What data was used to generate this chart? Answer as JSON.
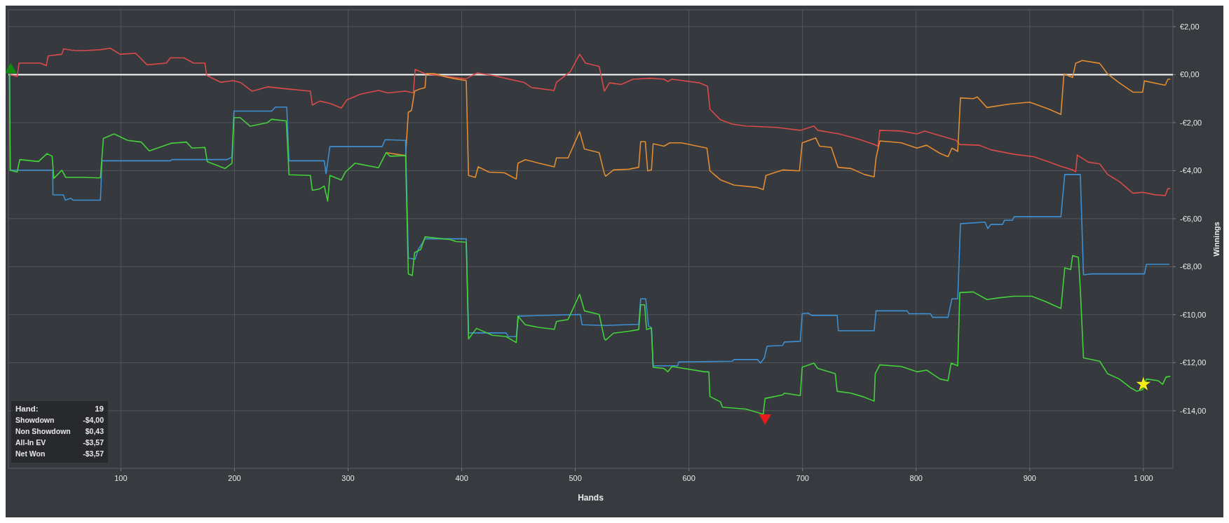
{
  "chart_data": {
    "type": "line",
    "xlabel": "Hands",
    "ylabel": "Winnings",
    "xlim": [
      1,
      1026
    ],
    "ylim": [
      -16.4,
      2.7
    ],
    "xticks": [
      100,
      200,
      300,
      400,
      500,
      600,
      700,
      800,
      900,
      {
        "value": 1000,
        "label": "1 000"
      }
    ],
    "yticks": [
      {
        "value": 2,
        "label": "€2,00"
      },
      {
        "value": 0,
        "label": "€0,00"
      },
      {
        "value": -2,
        "label": "-€2,00"
      },
      {
        "value": -4,
        "label": "-€4,00"
      },
      {
        "value": -6,
        "label": "-€6,00"
      },
      {
        "value": -8,
        "label": "-€8,00"
      },
      {
        "value": -10,
        "label": "-€10,00"
      },
      {
        "value": -12,
        "label": "-€12,00"
      },
      {
        "value": -14,
        "label": "-€14,00"
      }
    ],
    "grid": true,
    "ref_lines": [
      {
        "axis": "y",
        "value": 0,
        "color": "#ffffff"
      }
    ],
    "annotations": [
      "Hand:",
      "19",
      "Showdown",
      "-$4,00",
      "Non Showdown",
      "$0,43",
      "All-In EV",
      "-$3,57",
      "Net Won",
      "-$3,57"
    ],
    "series": [
      {
        "color": "#d94a4a",
        "x": [
          2,
          8.7,
          10.4,
          29.2,
          34.3,
          36,
          48,
          49.6,
          59.8,
          68.4,
          82,
          90.6,
          99.3,
          113,
          123,
          140,
          143.6,
          155.5,
          164,
          174,
          175.5,
          188,
          198.5,
          205,
          215.6,
          229,
          249.6,
          266.8,
          268.5,
          275,
          284,
          294,
          299,
          311,
          326.7,
          335,
          350.6,
          357.4,
          359,
          367.7,
          390,
          403.5,
          413.6,
          427,
          441,
          454.7,
          461.5,
          481.3,
          483.4,
          495.5,
          503.8,
          509,
          521,
          525.6,
          530,
          540.4,
          550.7,
          566,
          578,
          581.5,
          585,
          609,
          616.4,
          618.5,
          627.7,
          638,
          650,
          677.4,
          698,
          710,
          713.4,
          732.2,
          749.3,
          763,
          766.4,
          768,
          787,
          800.7,
          807.5,
          821,
          835,
          838.4,
          855.5,
          865.8,
          886.3,
          903.4,
          917,
          927.4,
          937.7,
          940.4,
          941.8,
          951.4,
          961.6,
          968.5,
          978.8,
          990.8,
          999.3,
          1009.6,
          1019.2,
          1021.6,
          1023.3
        ],
        "values": [
          0,
          -0.07,
          0.48,
          0.48,
          0.37,
          0.78,
          0.85,
          1.07,
          1.0,
          1.0,
          1.04,
          1.1,
          0.85,
          0.89,
          0.41,
          0.48,
          0.7,
          0.7,
          0.48,
          0.48,
          -0.03,
          -0.32,
          -0.25,
          -0.32,
          -0.69,
          -0.51,
          -0.61,
          -0.69,
          -1.27,
          -1.1,
          -1.2,
          -1.39,
          -1.05,
          -0.81,
          -0.66,
          -0.76,
          -0.69,
          -0.76,
          0.22,
          0.04,
          -0.1,
          -0.18,
          0.07,
          -0.03,
          -0.18,
          -0.32,
          -0.54,
          -0.66,
          -0.32,
          0.12,
          0.85,
          0.48,
          0.34,
          -0.69,
          -0.34,
          -0.41,
          -0.19,
          -0.15,
          -0.19,
          -0.29,
          -0.19,
          -0.34,
          -0.48,
          -1.44,
          -1.88,
          -2.06,
          -2.14,
          -2.2,
          -2.32,
          -2.14,
          -2.32,
          -2.47,
          -2.69,
          -2.91,
          -2.98,
          -2.32,
          -2.35,
          -2.47,
          -2.35,
          -2.54,
          -2.73,
          -2.91,
          -2.94,
          -3.13,
          -3.32,
          -3.42,
          -3.64,
          -3.82,
          -3.97,
          -4.05,
          -3.35,
          -3.64,
          -3.72,
          -4.16,
          -4.45,
          -4.94,
          -4.9,
          -5.0,
          -5.04,
          -4.75,
          -4.75
        ]
      },
      {
        "color": "#e38c32",
        "x": [
          333.5,
          350.6,
          353,
          355.8,
          358.5,
          362.6,
          367.7,
          368.7,
          376,
          386.5,
          395,
          404,
          406,
          412,
          414.5,
          424,
          437.7,
          448,
          449.5,
          456,
          468,
          481.5,
          483.4,
          493.6,
          503.8,
          508,
          521,
          525.6,
          526.7,
          533.6,
          547,
          555.8,
          557.5,
          561.6,
          563.7,
          567,
          568.5,
          578,
          583.2,
          593.5,
          615.8,
          618.5,
          627.7,
          639.7,
          660.3,
          665.4,
          667.8,
          682.5,
          697.3,
          699.7,
          711.6,
          715,
          725.3,
          731.2,
          742.5,
          754.5,
          763,
          764.7,
          768,
          787,
          800.7,
          809.2,
          821,
          828,
          831.5,
          836.6,
          839,
          850.3,
          853.8,
          862.3,
          882.9,
          900,
          917,
          927.4,
          930.1,
          937.7,
          940.4,
          946.2,
          961.6,
          968.5,
          978.8,
          990.8,
          999.3,
          1001,
          1013,
          1019.2,
          1021.6,
          1023.3
        ],
        "values": [
          -3.25,
          -3.37,
          -1.57,
          -1.49,
          -0.69,
          -0.61,
          -0.54,
          0.04,
          0.04,
          -0.1,
          -0.18,
          -0.25,
          -4.2,
          -4.28,
          -3.84,
          -4.06,
          -4.09,
          -4.35,
          -3.69,
          -3.54,
          -3.69,
          -3.84,
          -3.47,
          -3.47,
          -2.37,
          -3.1,
          -3.25,
          -4.13,
          -4.23,
          -3.97,
          -3.94,
          -3.86,
          -2.79,
          -2.79,
          -4.01,
          -3.97,
          -2.88,
          -2.98,
          -2.84,
          -2.84,
          -3.06,
          -4.01,
          -4.38,
          -4.6,
          -4.7,
          -4.79,
          -4.2,
          -3.97,
          -4.01,
          -2.84,
          -2.64,
          -2.98,
          -3.03,
          -3.86,
          -3.91,
          -4.16,
          -4.26,
          -3.47,
          -2.76,
          -2.84,
          -3.06,
          -2.94,
          -3.28,
          -3.42,
          -3.06,
          -3.2,
          -0.97,
          -1.0,
          -0.93,
          -1.37,
          -1.22,
          -1.15,
          -1.44,
          -1.66,
          0.03,
          -0.12,
          0.47,
          0.59,
          0.47,
          0.03,
          -0.34,
          -0.73,
          -0.73,
          -0.26,
          -0.38,
          -0.44,
          -0.19,
          -0.19
        ]
      },
      {
        "color": "#3d8fd1",
        "x": [
          2,
          2.6,
          40,
          40.2,
          49.4,
          51,
          56,
          58,
          82,
          83.4,
          143.6,
          145,
          193,
          197.8,
          199.5,
          232.6,
          236,
          246,
          248,
          279,
          280.6,
          284,
          330,
          332.6,
          350.6,
          353,
          359,
          361.8,
          367.7,
          404,
          406,
          439,
          441,
          448,
          450,
          504.4,
          506,
          526.7,
          555.8,
          557.5,
          562,
          564.4,
          567,
          568.5,
          590,
          591,
          638,
          639.7,
          660.3,
          663,
          666.4,
          668.8,
          682.5,
          684,
          698,
          699.7,
          704.8,
          708,
          730.5,
          731.5,
          763,
          764.7,
          792,
          793.8,
          812.7,
          814.4,
          828,
          831.5,
          836.6,
          839,
          860.6,
          863,
          865.8,
          876,
          877.7,
          884.6,
          886.3,
          927.4,
          930.8,
          944.5,
          947.3,
          954.8,
          1001,
          1002.7,
          1022.6
        ],
        "values": [
          0,
          -3.98,
          -3.98,
          -5.01,
          -5.01,
          -5.23,
          -5.15,
          -5.23,
          -5.23,
          -3.59,
          -3.59,
          -3.54,
          -3.54,
          -3.44,
          -1.52,
          -1.52,
          -1.35,
          -1.35,
          -3.59,
          -3.59,
          -4.13,
          -3.0,
          -3.0,
          -2.71,
          -2.74,
          -7.64,
          -7.69,
          -7.28,
          -6.84,
          -6.84,
          -10.76,
          -10.76,
          -10.91,
          -10.91,
          -10.06,
          -9.99,
          -10.42,
          -10.45,
          -10.4,
          -9.34,
          -9.34,
          -10.47,
          -10.55,
          -12.13,
          -12.13,
          -11.97,
          -11.94,
          -11.87,
          -11.87,
          -12.02,
          -11.8,
          -11.31,
          -11.28,
          -11.14,
          -11.11,
          -9.96,
          -9.93,
          -10.03,
          -10.03,
          -10.67,
          -10.67,
          -9.84,
          -9.84,
          -9.96,
          -9.96,
          -10.11,
          -10.11,
          -9.34,
          -9.34,
          -6.21,
          -6.14,
          -6.41,
          -6.24,
          -6.24,
          -6.07,
          -6.07,
          -5.92,
          -5.92,
          -4.16,
          -4.16,
          -8.34,
          -8.3,
          -8.3,
          -7.9,
          -7.9
        ]
      },
      {
        "color": "#44d13c",
        "x": [
          2,
          2.6,
          8.7,
          11,
          27.5,
          35,
          39.5,
          41,
          48,
          51.5,
          65,
          82,
          84.6,
          94,
          106,
          118,
          125,
          144,
          157.7,
          162.6,
          174,
          176,
          191.6,
          197.8,
          199.5,
          205,
          213.8,
          229,
          232.6,
          245.6,
          248,
          266.8,
          268.5,
          275,
          279,
          282,
          284,
          294,
          297.6,
          306,
          326.7,
          333.5,
          337,
          350.6,
          353,
          356.5,
          358.5,
          364,
          367.7,
          390,
          395,
          404,
          406,
          413,
          427,
          439,
          448,
          449.5,
          456,
          468,
          481.5,
          483.4,
          493.6,
          503.8,
          508,
          521,
          525.6,
          526.7,
          533.6,
          547,
          555.8,
          557.5,
          561,
          562.7,
          567,
          568.5,
          578,
          581.5,
          585,
          614,
          617.5,
          618.5,
          627.7,
          629.5,
          650,
          660.3,
          665.4,
          667,
          682.5,
          684,
          698,
          699.7,
          710,
          713.4,
          728.8,
          730.5,
          742.5,
          752.7,
          763,
          764,
          768,
          787,
          800.7,
          809.2,
          821,
          828,
          830.8,
          836.6,
          838.4,
          850.3,
          862.3,
          872.6,
          886.3,
          901.7,
          913.7,
          927.4,
          930.8,
          936,
          937.7,
          942.8,
          944.5,
          947.3,
          961.6,
          968.5,
          978.8,
          989,
          994.2,
          999.3,
          1002.7,
          1013,
          1017,
          1019.9,
          1023.3
        ],
        "values": [
          0,
          -3.98,
          -4.06,
          -3.54,
          -3.62,
          -3.29,
          -3.4,
          -4.32,
          -3.98,
          -4.28,
          -4.28,
          -4.3,
          -2.66,
          -2.47,
          -2.74,
          -2.81,
          -3.18,
          -2.86,
          -2.81,
          -3.06,
          -3.03,
          -3.62,
          -3.91,
          -3.69,
          -1.79,
          -1.79,
          -2.15,
          -2.0,
          -1.86,
          -1.93,
          -4.17,
          -4.2,
          -4.82,
          -4.76,
          -4.64,
          -5.27,
          -4.2,
          -4.39,
          -4.06,
          -3.69,
          -3.88,
          -3.25,
          -3.4,
          -3.37,
          -8.3,
          -8.37,
          -7.42,
          -7.28,
          -6.76,
          -6.87,
          -6.95,
          -6.98,
          -11.01,
          -10.57,
          -10.86,
          -10.91,
          -11.16,
          -10.06,
          -10.42,
          -10.53,
          -10.61,
          -10.28,
          -10.2,
          -9.15,
          -9.84,
          -9.99,
          -11.0,
          -11.06,
          -10.77,
          -10.69,
          -10.62,
          -9.59,
          -9.59,
          -10.62,
          -10.55,
          -12.19,
          -12.24,
          -12.38,
          -12.16,
          -12.38,
          -12.38,
          -13.41,
          -13.63,
          -13.85,
          -13.93,
          -14.07,
          -14.15,
          -13.49,
          -13.34,
          -13.27,
          -13.37,
          -12.19,
          -12.02,
          -12.24,
          -12.46,
          -13.19,
          -13.27,
          -13.41,
          -13.6,
          -12.46,
          -12.09,
          -12.16,
          -12.38,
          -12.31,
          -12.68,
          -12.75,
          -12.02,
          -12.13,
          -9.08,
          -9.05,
          -9.37,
          -9.3,
          -9.23,
          -9.23,
          -9.45,
          -9.74,
          -8.05,
          -8.12,
          -7.54,
          -7.61,
          -8.93,
          -11.8,
          -11.94,
          -12.46,
          -12.68,
          -13.05,
          -13.19,
          -13.12,
          -12.68,
          -12.75,
          -12.9,
          -12.6,
          -12.57
        ]
      },
      {
        "type": "scatter",
        "marker": "triangle",
        "color": "#128a12",
        "x": [
          3
        ],
        "values": [
          0.2
        ]
      },
      {
        "type": "scatter",
        "marker": "triangle-down",
        "color": "#e81c1c",
        "x": [
          667
        ],
        "values": [
          -14.3
        ]
      },
      {
        "type": "scatter",
        "marker": "star",
        "color": "#f5ec1a",
        "x": [
          1000
        ],
        "values": [
          -12.9
        ]
      }
    ]
  }
}
